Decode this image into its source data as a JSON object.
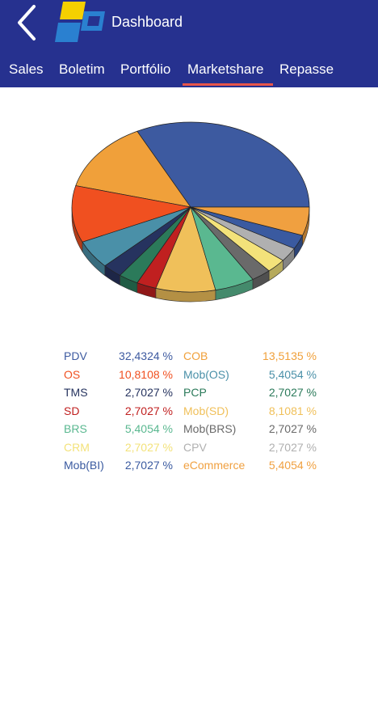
{
  "header": {
    "title": "Dashboard",
    "background": "#26318f"
  },
  "tabs": [
    {
      "label": "Sales",
      "active": false
    },
    {
      "label": "Boletim",
      "active": false
    },
    {
      "label": "Portfólio",
      "active": false
    },
    {
      "label": "Marketshare",
      "active": true
    },
    {
      "label": "Repasse",
      "active": false
    }
  ],
  "chart_data": {
    "type": "pie",
    "style": "3d",
    "legend_placement": "bottom",
    "slices": [
      {
        "name": "PDV",
        "value": 32.4324,
        "label": "32,4324 %",
        "color": "#3d5aa0"
      },
      {
        "name": "COB",
        "value": 13.5135,
        "label": "13,5135 %",
        "color": "#f0a03a"
      },
      {
        "name": "OS",
        "value": 10.8108,
        "label": "10,8108 %",
        "color": "#f05020"
      },
      {
        "name": "Mob(OS)",
        "value": 5.4054,
        "label": "5,4054 %",
        "color": "#4a90a8"
      },
      {
        "name": "TMS",
        "value": 2.7027,
        "label": "2,7027 %",
        "color": "#26335f"
      },
      {
        "name": "PCP",
        "value": 2.7027,
        "label": "2,7027 %",
        "color": "#2b7a5a"
      },
      {
        "name": "SD",
        "value": 2.7027,
        "label": "2,7027 %",
        "color": "#c02020"
      },
      {
        "name": "Mob(SD)",
        "value": 8.1081,
        "label": "8,1081 %",
        "color": "#f0c05a"
      },
      {
        "name": "BRS",
        "value": 5.4054,
        "label": "5,4054 %",
        "color": "#5ab890"
      },
      {
        "name": "Mob(BRS)",
        "value": 2.7027,
        "label": "2,7027 %",
        "color": "#6a6a6a"
      },
      {
        "name": "CRM",
        "value": 2.7027,
        "label": "2,7027 %",
        "color": "#f3e27a"
      },
      {
        "name": "CPV",
        "value": 2.7027,
        "label": "2,7027 %",
        "color": "#b0b0b0"
      },
      {
        "name": "Mob(BI)",
        "value": 2.7027,
        "label": "2,7027 %",
        "color": "#3a5aa0"
      },
      {
        "name": "eCommerce",
        "value": 5.4054,
        "label": "5,4054 %",
        "color": "#f0a040"
      }
    ]
  }
}
